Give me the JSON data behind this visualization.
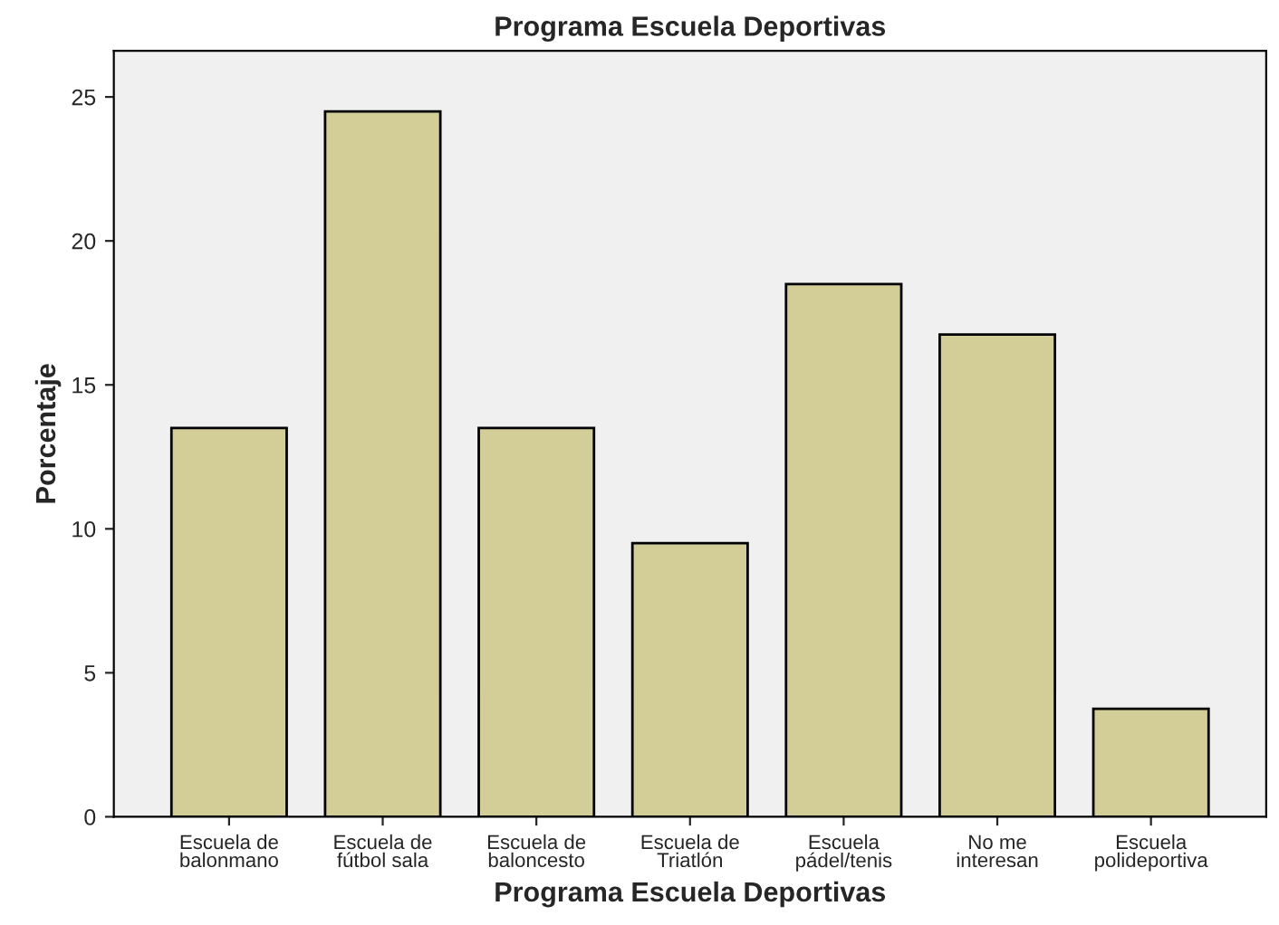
{
  "chart_data": {
    "type": "bar",
    "title": "Programa Escuela Deportivas",
    "xlabel": "Programa Escuela Deportivas",
    "ylabel": "Porcentaje",
    "categories": [
      "Escuela de\nbalonmano",
      "Escuela de\nfútbol sala",
      "Escuela de\nbaloncesto",
      "Escuela de\nTriatlón",
      "Escuela\npádel/tenis",
      "No me\ninteresan",
      "Escuela\npolideportiva"
    ],
    "values": [
      13.5,
      24.5,
      13.5,
      9.5,
      18.5,
      16.75,
      3.75
    ],
    "color": "#d3ce97",
    "ylim": [
      0,
      26.6
    ],
    "yticks": [
      0,
      5,
      10,
      15,
      20,
      25
    ],
    "grid": false
  }
}
